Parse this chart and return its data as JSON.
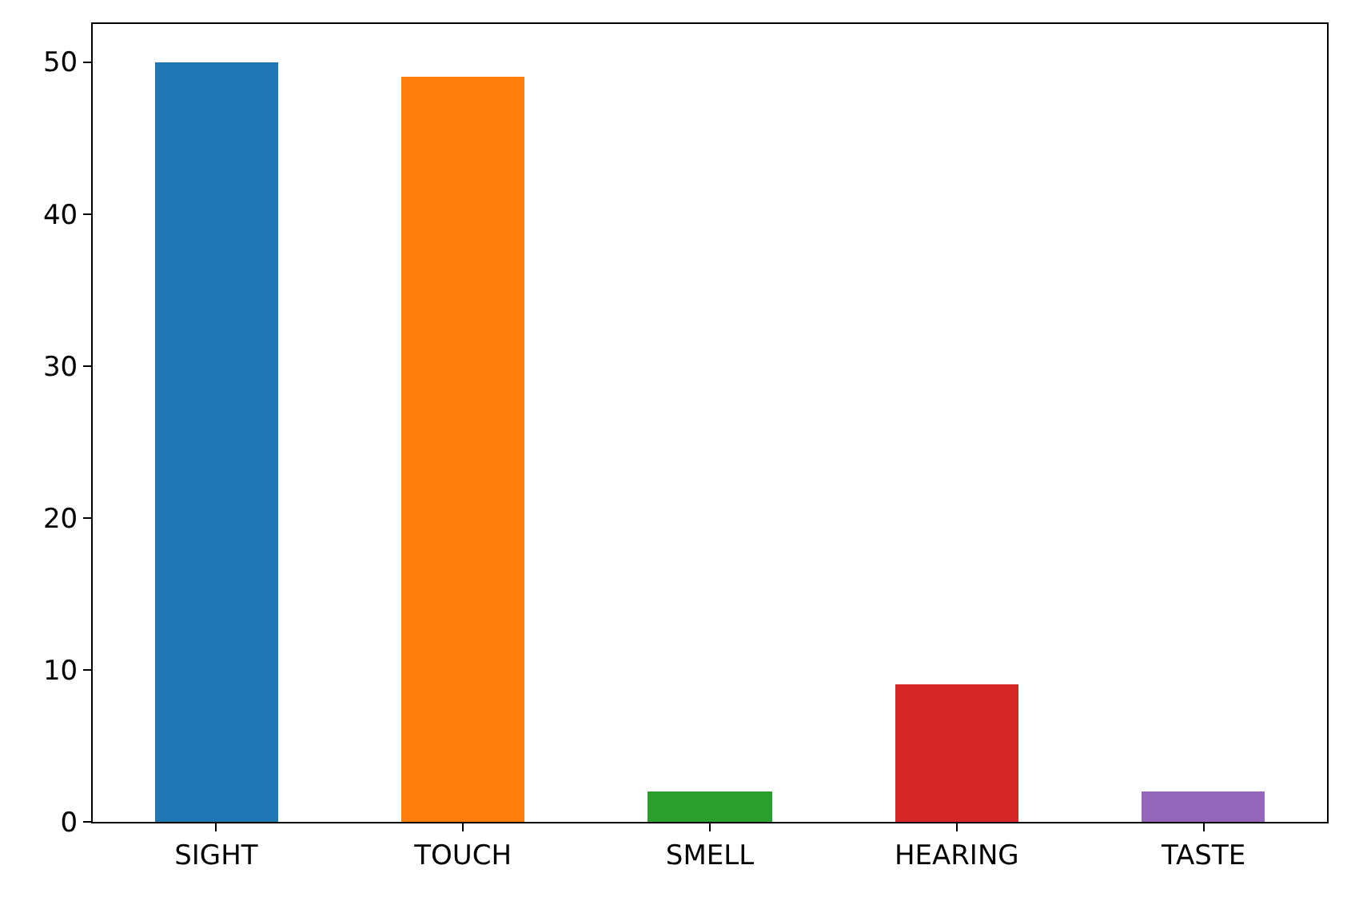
{
  "chart_data": {
    "type": "bar",
    "categories": [
      "SIGHT",
      "TOUCH",
      "SMELL",
      "HEARING",
      "TASTE"
    ],
    "values": [
      50,
      49,
      2,
      9,
      2
    ],
    "colors": [
      "#1f77b4",
      "#ff7f0e",
      "#2ca02c",
      "#d62728",
      "#9467bd"
    ],
    "ylim": [
      0,
      52.5
    ],
    "yticks": [
      0,
      10,
      20,
      30,
      40,
      50
    ]
  }
}
